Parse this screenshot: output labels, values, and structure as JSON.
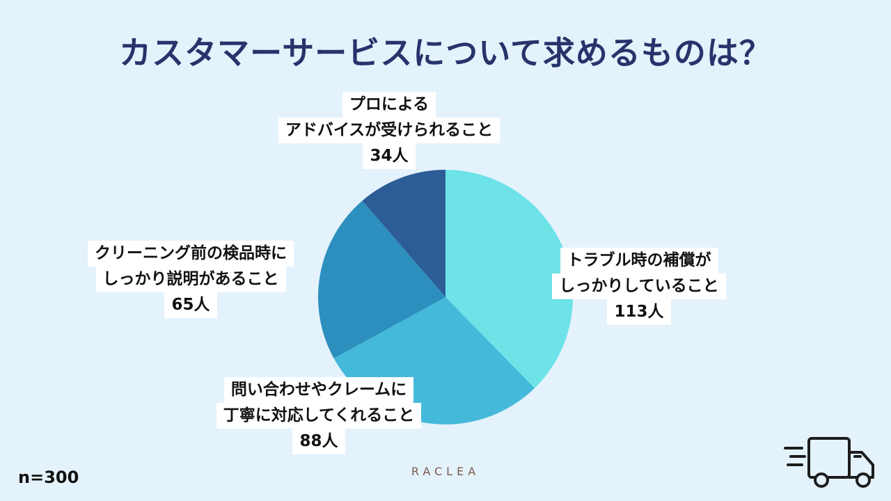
{
  "title": "カスタマーサービスについて求めるものは？",
  "sample_size": "n=300",
  "brand": "RACLEA",
  "icons": {
    "truck": "delivery-truck-icon"
  },
  "chart_data": {
    "type": "pie",
    "total": 300,
    "slices": [
      {
        "lines": [
          "トラブル時の補償が",
          "しっかりしていること"
        ],
        "value": 113,
        "value_label": "113人",
        "color": "#6de3e8"
      },
      {
        "lines": [
          "問い合わせやクレームに",
          "丁寧に対応してくれること"
        ],
        "value": 88,
        "value_label": "88人",
        "color": "#45b9d9"
      },
      {
        "lines": [
          "クリーニング前の検品時に",
          "しっかり説明があること"
        ],
        "value": 65,
        "value_label": "65人",
        "color": "#2d8fbe"
      },
      {
        "lines": [
          "プロによる",
          "アドバイスが受けられること"
        ],
        "value": 34,
        "value_label": "34人",
        "color": "#2c5d97"
      }
    ]
  }
}
